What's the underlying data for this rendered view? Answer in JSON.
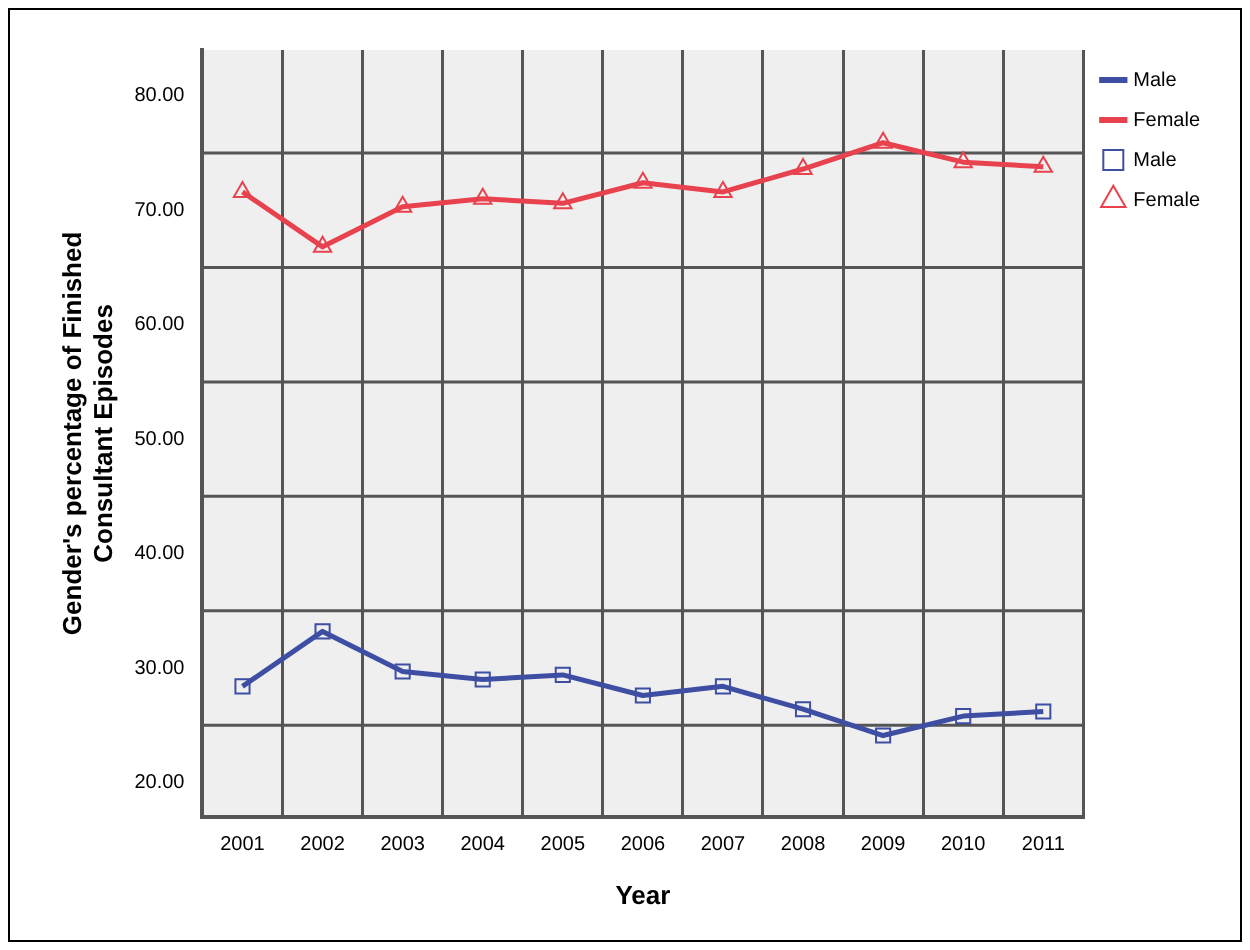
{
  "chart_data": {
    "type": "line",
    "xlabel": "Year",
    "ylabel": "Gender's percentage of Finished Consultant Episodes",
    "categories": [
      "2001",
      "2002",
      "2003",
      "2004",
      "2005",
      "2006",
      "2007",
      "2008",
      "2009",
      "2010",
      "2011"
    ],
    "series": [
      {
        "name": "Male",
        "color": "#3d4ea3",
        "marker": "square",
        "values": [
          28.4,
          33.2,
          29.7,
          29.0,
          29.4,
          27.6,
          28.4,
          26.4,
          24.1,
          25.8,
          26.2
        ]
      },
      {
        "name": "Female",
        "color": "#e8424f",
        "marker": "triangle",
        "values": [
          71.6,
          66.8,
          70.3,
          71.0,
          70.6,
          72.4,
          71.6,
          73.6,
          75.9,
          74.2,
          73.8
        ]
      }
    ],
    "ylim": [
      17,
      84
    ],
    "yticks": [
      {
        "value": 20,
        "label": "20.00"
      },
      {
        "value": 30,
        "label": "30.00"
      },
      {
        "value": 40,
        "label": "40.00"
      },
      {
        "value": 50,
        "label": "50.00"
      },
      {
        "value": 60,
        "label": "60.00"
      },
      {
        "value": 70,
        "label": "70.00"
      },
      {
        "value": 80,
        "label": "80.00"
      }
    ],
    "grid": "x",
    "legend": "top right",
    "ref_lines": [
      {
        "axis": "y",
        "value": 25,
        "color": "#555555"
      },
      {
        "axis": "y",
        "value": 35,
        "color": "#555555"
      },
      {
        "axis": "y",
        "value": 45,
        "color": "#555555"
      },
      {
        "axis": "y",
        "value": 55,
        "color": "#555555"
      },
      {
        "axis": "y",
        "value": 65,
        "color": "#555555"
      },
      {
        "axis": "y",
        "value": 75,
        "color": "#555555"
      }
    ]
  }
}
